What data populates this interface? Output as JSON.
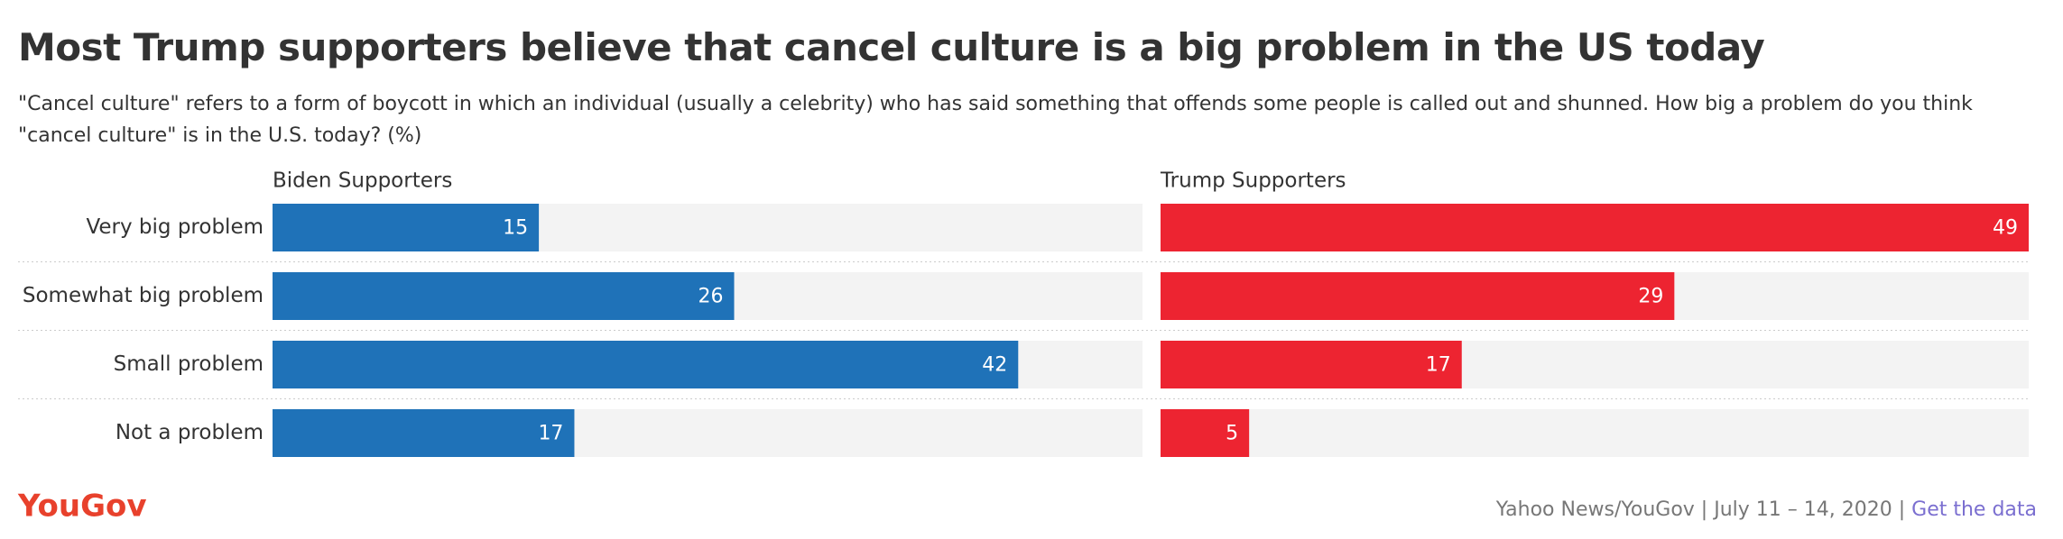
{
  "chart_data": {
    "type": "bar",
    "orientation": "horizontal",
    "title": "Most Trump supporters believe that cancel culture is a big problem in the US today",
    "subtitle": "\"Cancel culture\" refers to a form of boycott in which an individual (usually a celebrity) who has said something that offends some people is called out and shunned. How big a problem do you think \"cancel culture\" is in the U.S. today? (%)",
    "categories": [
      "Very big problem",
      "Somewhat big problem",
      "Small problem",
      "Not a problem"
    ],
    "series": [
      {
        "name": "Biden Supporters",
        "color": "#1f72b8",
        "values": [
          15,
          26,
          42,
          17
        ]
      },
      {
        "name": "Trump Supporters",
        "color": "#ed2431",
        "values": [
          49,
          29,
          17,
          5
        ]
      }
    ],
    "xlim": [
      0,
      49
    ]
  },
  "footer": {
    "logo": "YouGov",
    "source": "Yahoo News/YouGov",
    "date": "July 11 – 14, 2020",
    "link": "Get the data"
  }
}
